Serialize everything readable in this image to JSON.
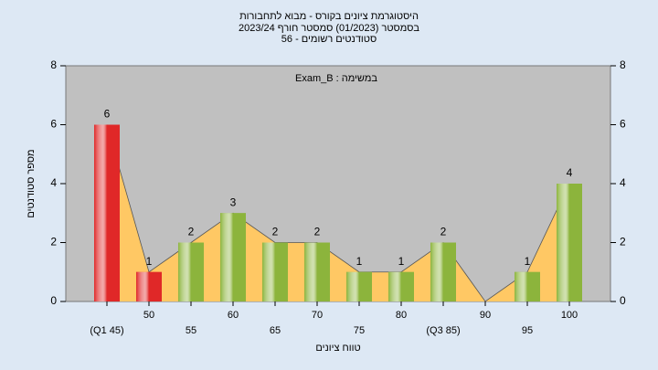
{
  "chart_data": {
    "type": "bar",
    "title_lines": [
      "היסטוגרמת ציונים בקורס - מבוא לתחבורות",
      "בסמסטר  (01/2023)  סמסטר חורף 2023/24",
      "סטודנטים רשומים - 56"
    ],
    "annotation": "במשימה : Exam_B",
    "x_label": "טווח ציונים",
    "y_label": "מספר סטודנטים",
    "categories": [
      "(Q1 45)",
      "50",
      "55",
      "60",
      "65",
      "70",
      "75",
      "80",
      "(Q3 85)",
      "90",
      "95",
      "100"
    ],
    "values": [
      6,
      1,
      2,
      3,
      2,
      2,
      1,
      1,
      2,
      0,
      1,
      4
    ],
    "colors": [
      "#e02828",
      "#e02828",
      "#8cb43c",
      "#8cb43c",
      "#8cb43c",
      "#8cb43c",
      "#8cb43c",
      "#8cb43c",
      "#8cb43c",
      "#8cb43c",
      "#8cb43c",
      "#8cb43c"
    ],
    "area_color": "#ffc864",
    "ylim": [
      0,
      8
    ],
    "yticks": [
      0,
      2,
      4,
      6,
      8
    ],
    "y2lim": [
      0,
      8
    ],
    "y2ticks": [
      0,
      2,
      4,
      6,
      8
    ]
  }
}
